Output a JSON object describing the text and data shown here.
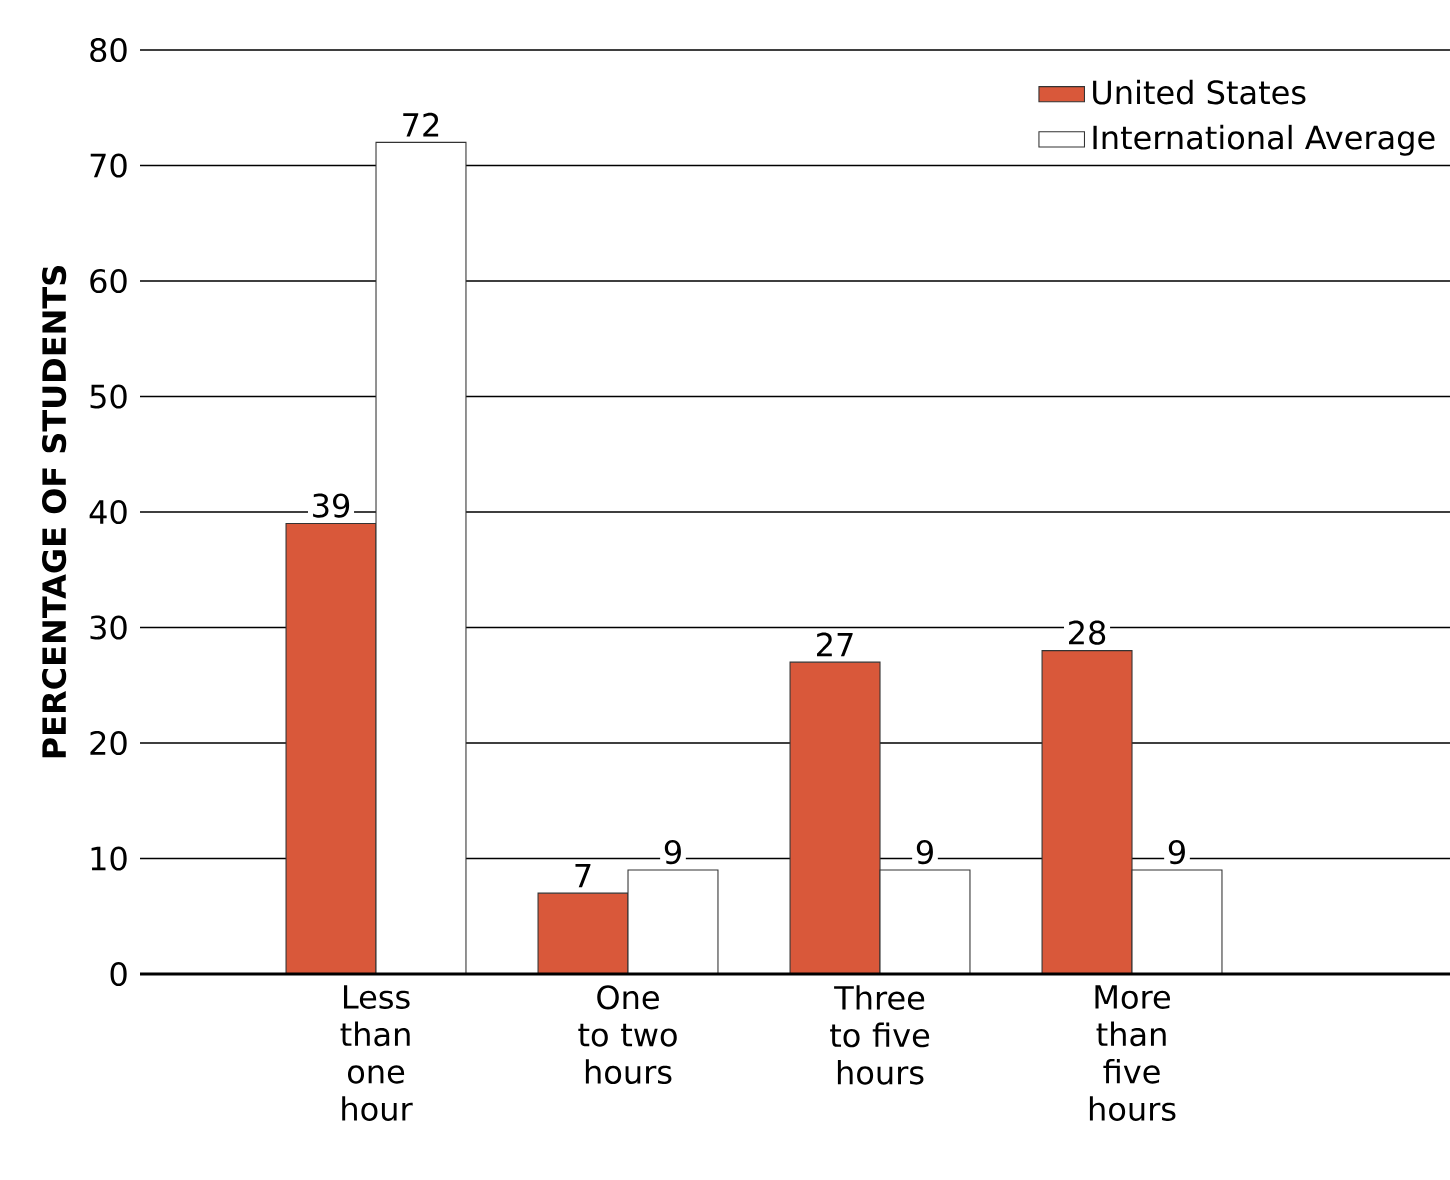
{
  "chart_data": {
    "type": "bar",
    "ylabel": "PERCENTAGE OF STUDENTS",
    "categories": [
      "Less than one hour",
      "One to two hours",
      "Three to five hours",
      "More than five hours"
    ],
    "series": [
      {
        "name": "United States",
        "color": "#d9583a",
        "values": [
          39,
          7,
          27,
          28
        ]
      },
      {
        "name": "International Average",
        "color": "#ffffff",
        "values": [
          72,
          9,
          9,
          9
        ]
      }
    ],
    "ylim": [
      0,
      80
    ],
    "yticks": [
      0,
      10,
      20,
      30,
      40,
      50,
      60,
      70,
      80
    ],
    "grid": "y",
    "legend": "top right",
    "data_labels": true
  }
}
